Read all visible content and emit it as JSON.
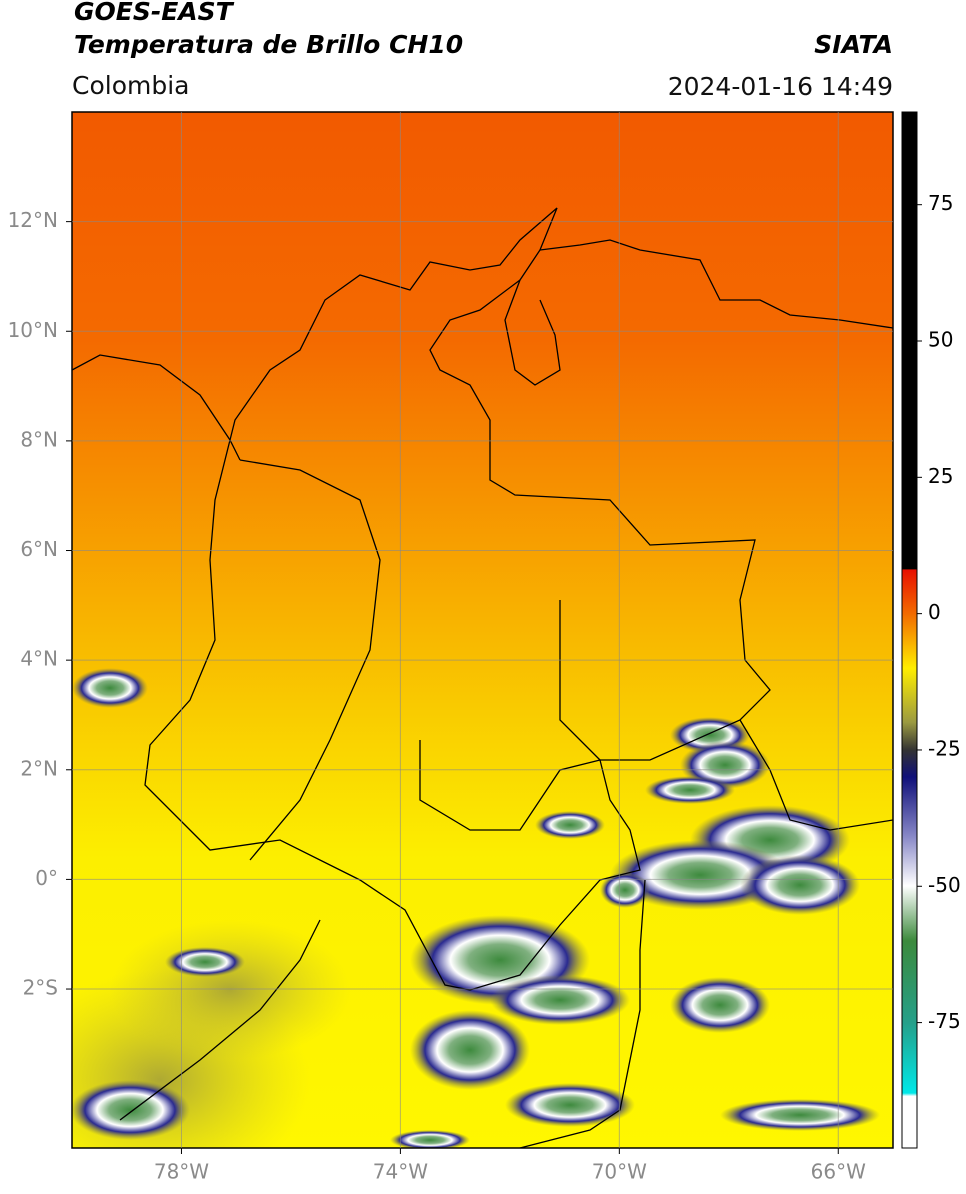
{
  "header": {
    "satellite": "GOES-EAST",
    "product": "Temperatura de Brillo CH10",
    "agency": "SIATA",
    "region": "Colombia",
    "datetime": "2024-01-16 14:49"
  },
  "map": {
    "lonlim": [
      -80,
      -65
    ],
    "latlim": [
      -4.9,
      14
    ],
    "lon_ticks": [
      {
        "value": -78,
        "label": "78°W"
      },
      {
        "value": -74,
        "label": "74°W"
      },
      {
        "value": -70,
        "label": "70°W"
      },
      {
        "value": -66,
        "label": "66°W"
      }
    ],
    "lat_ticks": [
      {
        "value": 12,
        "label": "12°N"
      },
      {
        "value": 10,
        "label": "10°N"
      },
      {
        "value": 8,
        "label": "8°N"
      },
      {
        "value": 6,
        "label": "6°N"
      },
      {
        "value": 4,
        "label": "4°N"
      },
      {
        "value": 2,
        "label": "2°N"
      },
      {
        "value": 0,
        "label": "0°"
      },
      {
        "value": -2,
        "label": "2°S"
      }
    ],
    "grid": true
  },
  "colorbar": {
    "lim": [
      -98,
      92
    ],
    "ticks": [
      75,
      50,
      25,
      0,
      -25,
      -50,
      -75
    ]
  }
}
